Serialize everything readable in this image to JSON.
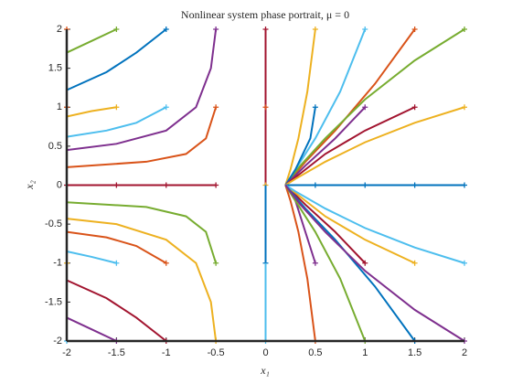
{
  "chart_data": {
    "type": "line",
    "title": "Nonlinear system phase portrait, μ = 0",
    "x_label": "x₁",
    "y_label": "x₂",
    "xlim": [
      -2,
      2
    ],
    "ylim": [
      -2,
      2
    ],
    "xticks": [
      -2,
      -1.5,
      -1,
      -0.5,
      0,
      0.5,
      1,
      1.5,
      2
    ],
    "yticks": [
      -2,
      -1.5,
      -1,
      -0.5,
      0,
      0.5,
      1,
      1.5,
      2
    ],
    "series": [
      {
        "color": "#D95319",
        "x": [
          -2
        ],
        "y": [
          2
        ]
      },
      {
        "color": "#77AC30",
        "x": [
          -1.5,
          -1.75,
          -2
        ],
        "y": [
          2,
          1.85,
          1.7
        ]
      },
      {
        "color": "#0072BD",
        "x": [
          -1,
          -1.3,
          -1.6,
          -2
        ],
        "y": [
          2,
          1.7,
          1.45,
          1.22
        ]
      },
      {
        "color": "#7E2F8E",
        "x": [
          -0.5,
          -0.55,
          -0.7,
          -1,
          -1.5,
          -2
        ],
        "y": [
          2,
          1.5,
          1,
          0.7,
          0.53,
          0.45
        ]
      },
      {
        "color": "#A2142F",
        "x": [
          0,
          0
        ],
        "y": [
          2,
          0
        ]
      },
      {
        "color": "#EDB120",
        "x": [
          0.5,
          0.42,
          0.33,
          0.25,
          0.2
        ],
        "y": [
          2,
          1.2,
          0.6,
          0.2,
          0
        ]
      },
      {
        "color": "#4DBEEE",
        "x": [
          1,
          0.75,
          0.5,
          0.3,
          0.2
        ],
        "y": [
          2,
          1.2,
          0.6,
          0.2,
          0
        ]
      },
      {
        "color": "#D95319",
        "x": [
          1.5,
          1.1,
          0.7,
          0.4,
          0.2
        ],
        "y": [
          2,
          1.3,
          0.7,
          0.3,
          0
        ]
      },
      {
        "color": "#77AC30",
        "x": [
          2,
          1.5,
          1,
          0.6,
          0.35,
          0.2
        ],
        "y": [
          2,
          1.6,
          1.1,
          0.6,
          0.25,
          0
        ]
      },
      {
        "color": "#D95319",
        "x": [
          -2
        ],
        "y": [
          1
        ]
      },
      {
        "color": "#EDB120",
        "x": [
          -1.5,
          -1.75,
          -2
        ],
        "y": [
          1,
          0.95,
          0.88
        ]
      },
      {
        "color": "#4DBEEE",
        "x": [
          -1,
          -1.3,
          -1.6,
          -2
        ],
        "y": [
          1,
          0.8,
          0.7,
          0.62
        ]
      },
      {
        "color": "#D95319",
        "x": [
          -0.5,
          -0.6,
          -0.8,
          -1.2,
          -2
        ],
        "y": [
          1,
          0.6,
          0.4,
          0.3,
          0.23
        ]
      },
      {
        "color": "#D95319",
        "x": [
          0
        ],
        "y": [
          1
        ]
      },
      {
        "color": "#0072BD",
        "x": [
          0.5,
          0.45,
          0.3,
          0.2
        ],
        "y": [
          1,
          0.6,
          0.2,
          0
        ]
      },
      {
        "color": "#7E2F8E",
        "x": [
          1,
          0.7,
          0.4,
          0.2
        ],
        "y": [
          1,
          0.6,
          0.25,
          0
        ]
      },
      {
        "color": "#A2142F",
        "x": [
          1.5,
          1,
          0.6,
          0.3,
          0.2
        ],
        "y": [
          1,
          0.7,
          0.4,
          0.1,
          0
        ]
      },
      {
        "color": "#EDB120",
        "x": [
          2,
          1.5,
          1,
          0.6,
          0.3,
          0.2
        ],
        "y": [
          1,
          0.8,
          0.55,
          0.3,
          0.08,
          0
        ]
      },
      {
        "color": "#A2142F",
        "x": [
          -2
        ],
        "y": [
          0
        ]
      },
      {
        "color": "#A2142F",
        "x": [
          -1.5,
          -2
        ],
        "y": [
          0,
          0
        ]
      },
      {
        "color": "#A2142F",
        "x": [
          -1,
          -2
        ],
        "y": [
          0,
          0
        ]
      },
      {
        "color": "#A2142F",
        "x": [
          -0.5,
          -2
        ],
        "y": [
          0,
          0
        ]
      },
      {
        "color": "#EDB120",
        "x": [
          0
        ],
        "y": [
          0
        ]
      },
      {
        "color": "#0072BD",
        "x": [
          0.5,
          0.2
        ],
        "y": [
          0,
          0
        ]
      },
      {
        "color": "#0072BD",
        "x": [
          1,
          0.2
        ],
        "y": [
          0,
          0
        ]
      },
      {
        "color": "#0072BD",
        "x": [
          1.5,
          0.2
        ],
        "y": [
          0,
          0
        ]
      },
      {
        "color": "#0072BD",
        "x": [
          2,
          0.2
        ],
        "y": [
          0,
          0
        ]
      },
      {
        "color": "#EDB120",
        "x": [
          -2
        ],
        "y": [
          -1
        ]
      },
      {
        "color": "#4DBEEE",
        "x": [
          -1.5,
          -1.75,
          -2
        ],
        "y": [
          -1,
          -0.92,
          -0.85
        ]
      },
      {
        "color": "#D95319",
        "x": [
          -1,
          -1.3,
          -1.6,
          -2
        ],
        "y": [
          -1,
          -0.78,
          -0.67,
          -0.6
        ]
      },
      {
        "color": "#77AC30",
        "x": [
          -0.5,
          -0.6,
          -0.8,
          -1.2,
          -2
        ],
        "y": [
          -1,
          -0.6,
          -0.4,
          -0.28,
          -0.22
        ]
      },
      {
        "color": "#0072BD",
        "x": [
          0,
          0
        ],
        "y": [
          -1,
          0
        ]
      },
      {
        "color": "#7E2F8E",
        "x": [
          0.5,
          0.4,
          0.3,
          0.2
        ],
        "y": [
          -1,
          -0.6,
          -0.2,
          0
        ]
      },
      {
        "color": "#A2142F",
        "x": [
          1,
          0.7,
          0.4,
          0.2
        ],
        "y": [
          -1,
          -0.6,
          -0.25,
          0
        ]
      },
      {
        "color": "#EDB120",
        "x": [
          1.5,
          1,
          0.6,
          0.3,
          0.2
        ],
        "y": [
          -1,
          -0.7,
          -0.4,
          -0.1,
          0
        ]
      },
      {
        "color": "#4DBEEE",
        "x": [
          2,
          1.5,
          1,
          0.6,
          0.3,
          0.2
        ],
        "y": [
          -1,
          -0.8,
          -0.55,
          -0.3,
          -0.08,
          0
        ]
      },
      {
        "color": "#4DBEEE",
        "x": [
          -2
        ],
        "y": [
          -2
        ]
      },
      {
        "color": "#7E2F8E",
        "x": [
          -1.5,
          -1.75,
          -2
        ],
        "y": [
          -2,
          -1.85,
          -1.7
        ]
      },
      {
        "color": "#A2142F",
        "x": [
          -1,
          -1.3,
          -1.6,
          -2
        ],
        "y": [
          -2,
          -1.7,
          -1.45,
          -1.22
        ]
      },
      {
        "color": "#EDB120",
        "x": [
          -0.5,
          -0.55,
          -0.7,
          -1,
          -1.5,
          -2
        ],
        "y": [
          -2,
          -1.5,
          -1,
          -0.7,
          -0.5,
          -0.43
        ]
      },
      {
        "color": "#4DBEEE",
        "x": [
          0,
          0
        ],
        "y": [
          -2,
          -1
        ]
      },
      {
        "color": "#D95319",
        "x": [
          0.5,
          0.42,
          0.33,
          0.25,
          0.2
        ],
        "y": [
          -2,
          -1.2,
          -0.6,
          -0.2,
          0
        ]
      },
      {
        "color": "#77AC30",
        "x": [
          1,
          0.75,
          0.5,
          0.3,
          0.2
        ],
        "y": [
          -2,
          -1.2,
          -0.6,
          -0.2,
          0
        ]
      },
      {
        "color": "#0072BD",
        "x": [
          1.5,
          1.1,
          0.7,
          0.4,
          0.2
        ],
        "y": [
          -2,
          -1.3,
          -0.7,
          -0.3,
          0
        ]
      },
      {
        "color": "#7E2F8E",
        "x": [
          2,
          1.5,
          1,
          0.6,
          0.35,
          0.2
        ],
        "y": [
          -2,
          -1.6,
          -1.1,
          -0.6,
          -0.25,
          0
        ]
      }
    ]
  }
}
